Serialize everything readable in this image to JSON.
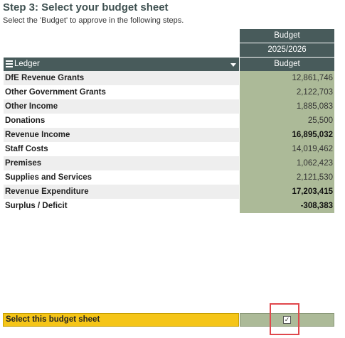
{
  "page": {
    "title": "Step 3: Select your budget sheet",
    "subtitle": "Select the 'Budget' to approve in the following steps."
  },
  "table": {
    "column_headers": [
      "Budget",
      "2025/2026",
      "Budget"
    ],
    "ledger_header": "Ledger",
    "rows": [
      {
        "label": "DfE Revenue Grants",
        "value": "12,861,746",
        "bold": false
      },
      {
        "label": "Other Government Grants",
        "value": "2,122,703",
        "bold": false
      },
      {
        "label": "Other Income",
        "value": "1,885,083",
        "bold": false
      },
      {
        "label": "Donations",
        "value": "25,500",
        "bold": false
      },
      {
        "label": "Revenue Income",
        "value": "16,895,032",
        "bold": true
      },
      {
        "label": "Staff Costs",
        "value": "14,019,462",
        "bold": false
      },
      {
        "label": "Premises",
        "value": "1,062,423",
        "bold": false
      },
      {
        "label": "Supplies and Services",
        "value": "2,121,530",
        "bold": false
      },
      {
        "label": "Revenue Expenditure",
        "value": "17,203,415",
        "bold": true
      },
      {
        "label": "Surplus / Deficit",
        "value": "-308,383",
        "bold": true
      }
    ]
  },
  "selection": {
    "label": "Select this budget sheet",
    "checkbox_glyph": "✓",
    "checked": true
  },
  "icons": {
    "menu": "hamburger-menu-icon",
    "dropdown": "chevron-down-icon",
    "checkbox": "checkbox-icon"
  },
  "colors": {
    "title": "#3f5151",
    "header_bg": "#485b5b",
    "value_bg": "#acba98",
    "select_bar": "#f5c518",
    "highlight": "#e0474c"
  }
}
